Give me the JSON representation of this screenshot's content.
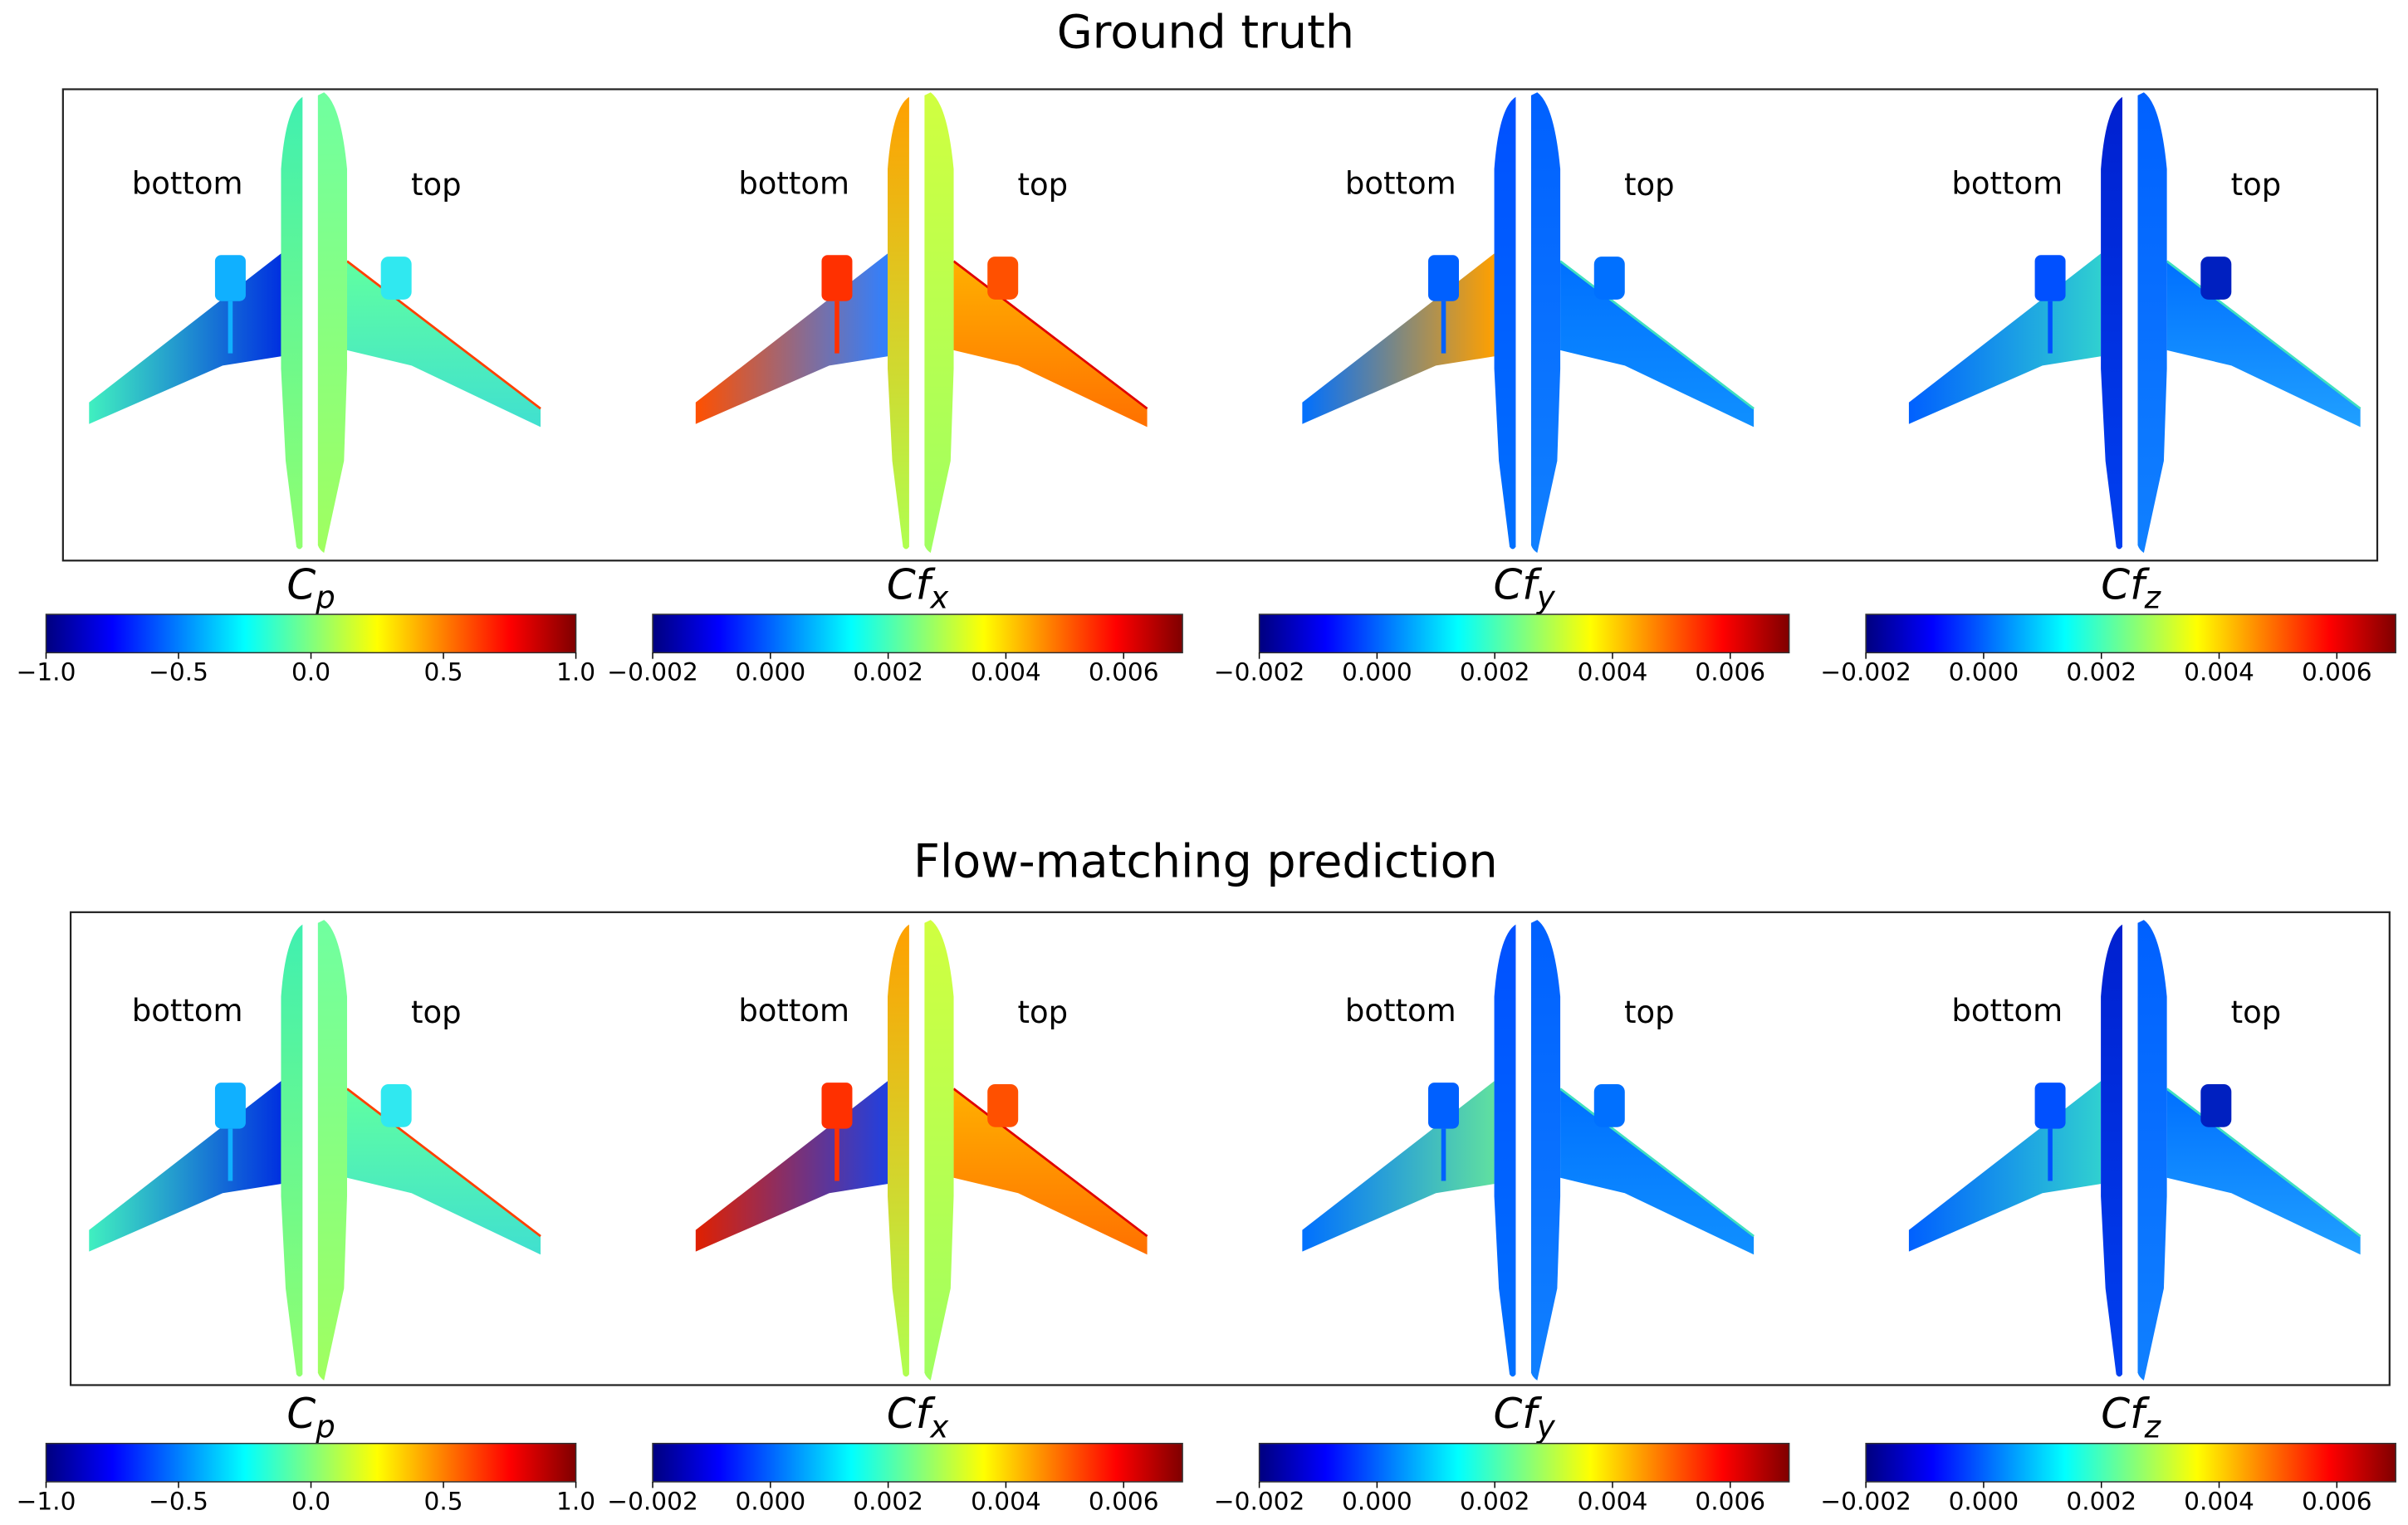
{
  "figure": {
    "rows": [
      {
        "title": "Ground truth"
      },
      {
        "title": "Flow-matching prediction"
      }
    ],
    "side_labels": {
      "left": "bottom",
      "right": "top"
    }
  },
  "chart_data": [
    {
      "type": "heatmap",
      "row": "Ground truth",
      "panels": [
        {
          "quantity": "C",
          "subscript": "p",
          "colormap": "jet",
          "range": [
            -1.0,
            1.0
          ],
          "ticks": [
            "−1.0",
            "−0.5",
            "0.0",
            "0.5",
            "1.0"
          ],
          "tick_values": [
            -1.0,
            -0.5,
            0.0,
            0.5,
            1.0
          ],
          "colors": {
            "fus_l": [
              "#40f0b0",
              "#90ff70"
            ],
            "fus_r": [
              "#70ffa0",
              "#a0ff60"
            ],
            "wing_l": [
              "#40f0c0",
              "#0030e0"
            ],
            "wing_r": [
              "#60ffa0",
              "#40e0d0"
            ],
            "eng_l": "#10b0ff",
            "eng_r": "#30e8f0",
            "edge_r": "#ff4000"
          }
        },
        {
          "quantity": "Cf",
          "subscript": "x",
          "colormap": "jet",
          "range": [
            -0.002,
            0.007
          ],
          "ticks": [
            "−0.002",
            "0.000",
            "0.002",
            "0.004",
            "0.006"
          ],
          "tick_values": [
            -0.002,
            0.0,
            0.002,
            0.004,
            0.006
          ],
          "colors": {
            "fus_l": [
              "#ffa000",
              "#b0ff50"
            ],
            "fus_r": [
              "#d0ff40",
              "#a0ff60"
            ],
            "wing_l": [
              "#ff5000",
              "#3080ff"
            ],
            "wing_r": [
              "#ffb000",
              "#ff7000"
            ],
            "eng_l": "#ff3000",
            "eng_r": "#ff5000",
            "edge_r": "#e00000"
          }
        },
        {
          "quantity": "Cf",
          "subscript": "y",
          "colormap": "jet",
          "range": [
            -0.002,
            0.007
          ],
          "ticks": [
            "−0.002",
            "0.000",
            "0.002",
            "0.004",
            "0.006"
          ],
          "tick_values": [
            -0.002,
            0.0,
            0.002,
            0.004,
            0.006
          ],
          "colors": {
            "fus_l": [
              "#0050ff",
              "#0070ff"
            ],
            "fus_r": [
              "#0060ff",
              "#1080ff"
            ],
            "wing_l": [
              "#0070ff",
              "#ffa000"
            ],
            "wing_r": [
              "#0070ff",
              "#1090ff"
            ],
            "eng_l": "#0060ff",
            "eng_r": "#0070ff",
            "edge_r": "#40e0c0"
          }
        },
        {
          "quantity": "Cf",
          "subscript": "z",
          "colormap": "jet",
          "range": [
            -0.002,
            0.007
          ],
          "ticks": [
            "−0.002",
            "0.000",
            "0.002",
            "0.004",
            "0.006"
          ],
          "tick_values": [
            -0.002,
            0.0,
            0.002,
            0.004,
            0.006
          ],
          "colors": {
            "fus_l": [
              "#0020d0",
              "#0040f0"
            ],
            "fus_r": [
              "#0060ff",
              "#1080ff"
            ],
            "wing_l": [
              "#0060ff",
              "#30d0d0"
            ],
            "wing_r": [
              "#0070ff",
              "#20a0ff"
            ],
            "eng_l": "#0050ff",
            "eng_r": "#0020c0",
            "edge_r": "#40e0c0"
          }
        }
      ]
    },
    {
      "type": "heatmap",
      "row": "Flow-matching prediction",
      "panels": [
        {
          "quantity": "C",
          "subscript": "p",
          "colormap": "jet",
          "range": [
            -1.0,
            1.0
          ],
          "ticks": [
            "−1.0",
            "−0.5",
            "0.0",
            "0.5",
            "1.0"
          ],
          "tick_values": [
            -1.0,
            -0.5,
            0.0,
            0.5,
            1.0
          ],
          "colors": {
            "fus_l": [
              "#40f0b0",
              "#90ff70"
            ],
            "fus_r": [
              "#70ffa0",
              "#a0ff60"
            ],
            "wing_l": [
              "#40f0c0",
              "#0030e0"
            ],
            "wing_r": [
              "#60ffa0",
              "#40e0d0"
            ],
            "eng_l": "#10b0ff",
            "eng_r": "#30e8f0",
            "edge_r": "#ff4000"
          }
        },
        {
          "quantity": "Cf",
          "subscript": "x",
          "colormap": "jet",
          "range": [
            -0.002,
            0.007
          ],
          "ticks": [
            "−0.002",
            "0.000",
            "0.002",
            "0.004",
            "0.006"
          ],
          "tick_values": [
            -0.002,
            0.0,
            0.002,
            0.004,
            0.006
          ],
          "colors": {
            "fus_l": [
              "#ffa000",
              "#b0ff50"
            ],
            "fus_r": [
              "#d0ff40",
              "#a0ff60"
            ],
            "wing_l": [
              "#e02000",
              "#2040e0"
            ],
            "wing_r": [
              "#ffb000",
              "#ff7000"
            ],
            "eng_l": "#ff3000",
            "eng_r": "#ff5000",
            "edge_r": "#e00000"
          }
        },
        {
          "quantity": "Cf",
          "subscript": "y",
          "colormap": "jet",
          "range": [
            -0.002,
            0.007
          ],
          "ticks": [
            "−0.002",
            "0.000",
            "0.002",
            "0.004",
            "0.006"
          ],
          "tick_values": [
            -0.002,
            0.0,
            0.002,
            0.004,
            0.006
          ],
          "colors": {
            "fus_l": [
              "#0050ff",
              "#0070ff"
            ],
            "fus_r": [
              "#0060ff",
              "#1080ff"
            ],
            "wing_l": [
              "#0070ff",
              "#60e0a0"
            ],
            "wing_r": [
              "#0070ff",
              "#1090ff"
            ],
            "eng_l": "#0060ff",
            "eng_r": "#0070ff",
            "edge_r": "#40e0c0"
          }
        },
        {
          "quantity": "Cf",
          "subscript": "z",
          "colormap": "jet",
          "range": [
            -0.002,
            0.007
          ],
          "ticks": [
            "−0.002",
            "0.000",
            "0.002",
            "0.004",
            "0.006"
          ],
          "tick_values": [
            -0.002,
            0.0,
            0.002,
            0.004,
            0.006
          ],
          "colors": {
            "fus_l": [
              "#0020d0",
              "#0040f0"
            ],
            "fus_r": [
              "#0060ff",
              "#1080ff"
            ],
            "wing_l": [
              "#0060ff",
              "#30d0d0"
            ],
            "wing_r": [
              "#0070ff",
              "#20a0ff"
            ],
            "eng_l": "#0050ff",
            "eng_r": "#0020c0",
            "edge_r": "#40e0c0"
          }
        }
      ]
    }
  ],
  "colormap_stops": [
    "#00007f",
    "#0000ff",
    "#007fff",
    "#00ffff",
    "#7fff7f",
    "#ffff00",
    "#ff7f00",
    "#ff0000",
    "#7f0000"
  ]
}
